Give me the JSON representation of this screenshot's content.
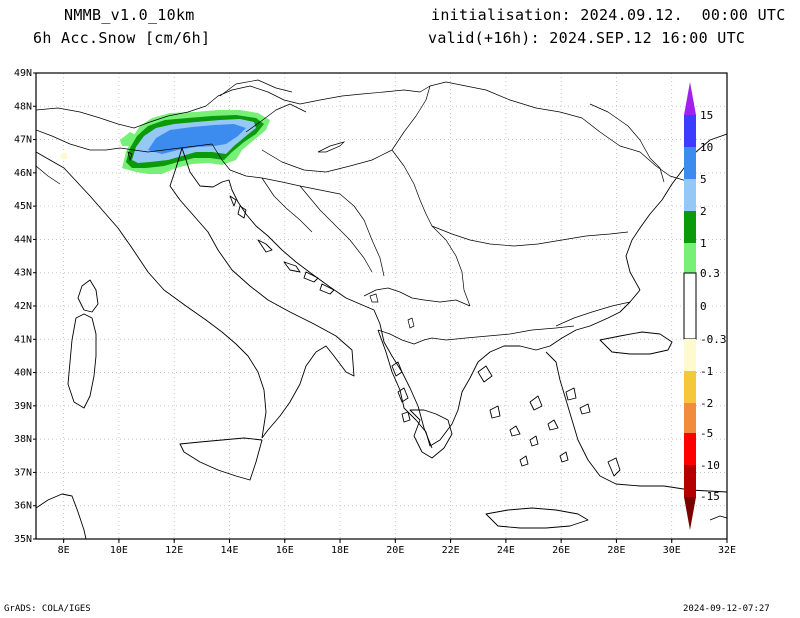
{
  "header": {
    "model": "NMMB_v1.0_10km",
    "variable": "6h Acc.Snow [cm/6h]",
    "init": "initialisation: 2024.09.12.  00:00 UTC",
    "valid": "valid(+16h): 2024.SEP.12 16:00 UTC"
  },
  "footer": {
    "left": "GrADS: COLA/IGES",
    "right": "2024-09-12-07:27"
  },
  "axes": {
    "lon_labels": [
      "8E",
      "10E",
      "12E",
      "14E",
      "16E",
      "18E",
      "20E",
      "22E",
      "24E",
      "26E",
      "28E",
      "30E",
      "32E"
    ],
    "lat_labels": [
      "35N",
      "36N",
      "37N",
      "38N",
      "39N",
      "40N",
      "41N",
      "42N",
      "43N",
      "44N",
      "45N",
      "46N",
      "47N",
      "48N",
      "49N"
    ],
    "lon_range": [
      7,
      32
    ],
    "lat_range": [
      35,
      49
    ],
    "grid": true
  },
  "legend": {
    "labels": [
      "15",
      "10",
      "5",
      "2",
      "1",
      "0.3",
      "0",
      "-0.3",
      "-1",
      "-2",
      "-5",
      "-10",
      "-15"
    ],
    "colors": {
      "top_arrow": "#a020f0",
      "c15": "#3c3cff",
      "c10": "#3c8cf0",
      "c5": "#96c8f5",
      "c2": "#0a9a0a",
      "c1": "#78f078",
      "zero": "#ffffff",
      "n03": "#fffacd",
      "n1": "#f5c83c",
      "n2": "#f08c3c",
      "n5": "#ff0000",
      "n10": "#b40000",
      "bottom_arrow": "#7a0000"
    }
  }
}
